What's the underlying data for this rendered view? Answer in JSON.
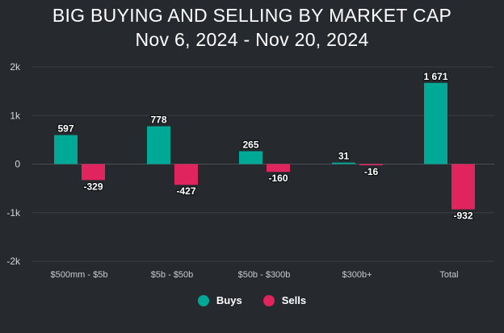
{
  "chart_data": {
    "type": "bar",
    "title": "BIG BUYING AND SELLING BY MARKET CAP",
    "subtitle": "Nov 6, 2024 - Nov 20, 2024",
    "categories": [
      "$500mm - $5b",
      "$5b - $50b",
      "$50b - $300b",
      "$300b+",
      "Total"
    ],
    "series": [
      {
        "name": "Buys",
        "color": "#00a896",
        "values": [
          597,
          778,
          265,
          31,
          1671
        ],
        "labels": [
          "597",
          "778",
          "265",
          "31",
          "1 671"
        ]
      },
      {
        "name": "Sells",
        "color": "#e0245e",
        "values": [
          -329,
          -427,
          -160,
          -16,
          -932
        ],
        "labels": [
          "-329",
          "-427",
          "-160",
          "-16",
          "-932"
        ]
      }
    ],
    "ylim": [
      -2000,
      2000
    ],
    "yticks": [
      2000,
      1000,
      0,
      -1000,
      -2000
    ],
    "ytick_labels": [
      "2k",
      "1k",
      "0",
      "-1k",
      "-2k"
    ],
    "xlabel": "",
    "ylabel": "",
    "grid": true,
    "legend": "bottom-center"
  }
}
